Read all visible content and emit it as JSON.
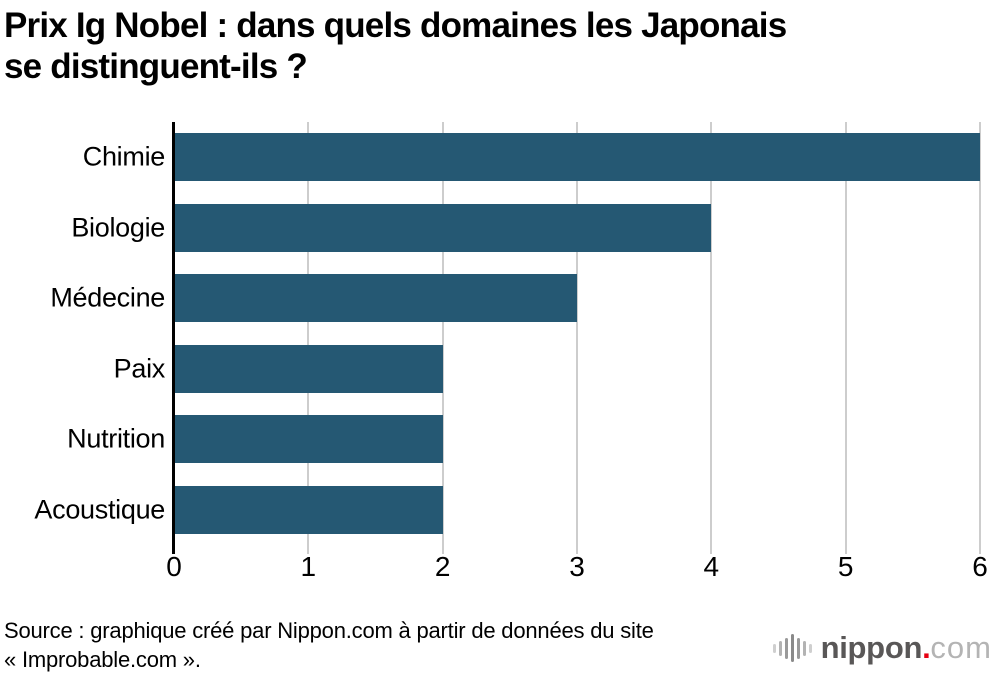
{
  "title": {
    "line1": "Prix Ig Nobel : dans quels domaines les Japonais",
    "line2": "se distinguent-ils ?"
  },
  "chart_data": {
    "type": "bar",
    "orientation": "horizontal",
    "categories": [
      "Chimie",
      "Biologie",
      "Médecine",
      "Paix",
      "Nutrition",
      "Acoustique"
    ],
    "values": [
      6,
      4,
      3,
      2,
      2,
      2
    ],
    "title": "Prix Ig Nobel : dans quels domaines les Japonais se distinguent-ils ?",
    "xlabel": "",
    "ylabel": "",
    "xlim": [
      0,
      6
    ],
    "xticks": [
      "0",
      "1",
      "2",
      "3",
      "4",
      "5",
      "6"
    ],
    "grid": true,
    "legend": false,
    "bar_color": "#255873",
    "gridline_color": "#cdcdcd",
    "axis_color": "#000000"
  },
  "source": {
    "line1": "Source : graphique créé par Nippon.com à partir de données du site",
    "line2": "« Improbable.com »."
  },
  "logo": {
    "icon": "soundwave-bars-icon",
    "icon_bar_colors": [
      "#cfcfcf",
      "#b3b3b3",
      "#9a9a9a",
      "#8a8a8a",
      "#9a9a9a",
      "#b3b3b3",
      "#cfcfcf"
    ],
    "icon_bar_heights": [
      9,
      15,
      21,
      28,
      21,
      15,
      9
    ],
    "name": "nippon",
    "dot": ".",
    "tld": "com",
    "name_color": "#595757",
    "dot_color": "#e60012",
    "tld_color": "#b4b4b4"
  }
}
